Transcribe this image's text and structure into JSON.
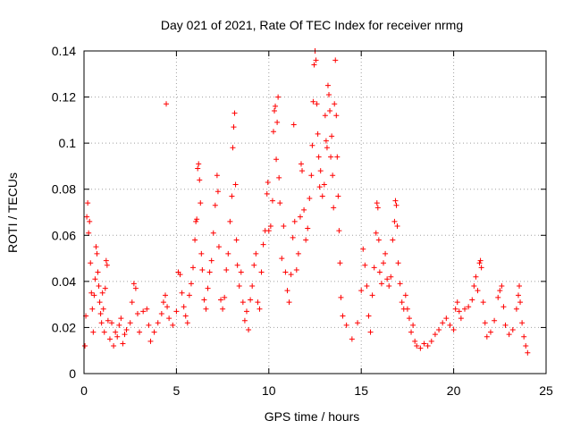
{
  "chart_data": {
    "type": "scatter",
    "title": "Day 021 of 2021, Rate Of TEC Index for receiver nrmg",
    "xlabel": "GPS time / hours",
    "ylabel": "ROTI / TECUs",
    "xlim": [
      0,
      25
    ],
    "ylim": [
      0,
      0.14
    ],
    "xticks": [
      0,
      5,
      10,
      15,
      20,
      25
    ],
    "yticks": [
      0,
      0.02,
      0.04,
      0.06,
      0.08,
      0.1,
      0.12,
      0.14
    ],
    "xtick_labels": [
      "0",
      "5",
      "10",
      "15",
      "20",
      "25"
    ],
    "ytick_labels": [
      "0",
      "0.02",
      "0.04",
      "0.06",
      "0.08",
      "0.1",
      "0.12",
      "0.14"
    ],
    "grid": true,
    "marker": "plus",
    "colors": {
      "series": "#ff0000",
      "grid": "#a0a0a0",
      "axes": "#000000"
    },
    "series": [
      {
        "points": [
          [
            0.05,
            0.012
          ],
          [
            0.1,
            0.025
          ],
          [
            0.15,
            0.068
          ],
          [
            0.2,
            0.074
          ],
          [
            0.25,
            0.061
          ],
          [
            0.3,
            0.066
          ],
          [
            0.35,
            0.048
          ],
          [
            0.4,
            0.035
          ],
          [
            0.45,
            0.028
          ],
          [
            0.5,
            0.018
          ],
          [
            0.55,
            0.034
          ],
          [
            0.6,
            0.041
          ],
          [
            0.65,
            0.055
          ],
          [
            0.7,
            0.052
          ],
          [
            0.75,
            0.044
          ],
          [
            0.8,
            0.038
          ],
          [
            0.85,
            0.031
          ],
          [
            0.9,
            0.026
          ],
          [
            0.95,
            0.022
          ],
          [
            1.0,
            0.035
          ],
          [
            1.05,
            0.028
          ],
          [
            1.1,
            0.018
          ],
          [
            1.15,
            0.037
          ],
          [
            1.2,
            0.049
          ],
          [
            1.25,
            0.047
          ],
          [
            1.3,
            0.023
          ],
          [
            1.4,
            0.015
          ],
          [
            1.5,
            0.022
          ],
          [
            1.6,
            0.012
          ],
          [
            1.7,
            0.018
          ],
          [
            1.8,
            0.016
          ],
          [
            1.9,
            0.021
          ],
          [
            2.0,
            0.024
          ],
          [
            2.1,
            0.013
          ],
          [
            2.2,
            0.017
          ],
          [
            2.3,
            0.019
          ],
          [
            2.5,
            0.022
          ],
          [
            2.6,
            0.031
          ],
          [
            2.7,
            0.039
          ],
          [
            2.8,
            0.037
          ],
          [
            2.9,
            0.026
          ],
          [
            3.0,
            0.018
          ],
          [
            3.2,
            0.027
          ],
          [
            3.4,
            0.028
          ],
          [
            3.5,
            0.021
          ],
          [
            3.6,
            0.014
          ],
          [
            3.8,
            0.018
          ],
          [
            4.0,
            0.022
          ],
          [
            4.2,
            0.026
          ],
          [
            4.3,
            0.031
          ],
          [
            4.4,
            0.034
          ],
          [
            4.45,
            0.117
          ],
          [
            4.5,
            0.029
          ],
          [
            4.6,
            0.024
          ],
          [
            4.8,
            0.021
          ],
          [
            5.0,
            0.027
          ],
          [
            5.1,
            0.044
          ],
          [
            5.2,
            0.043
          ],
          [
            5.3,
            0.035
          ],
          [
            5.4,
            0.029
          ],
          [
            5.5,
            0.025
          ],
          [
            5.6,
            0.022
          ],
          [
            5.7,
            0.034
          ],
          [
            5.8,
            0.039
          ],
          [
            5.9,
            0.046
          ],
          [
            6.0,
            0.058
          ],
          [
            6.05,
            0.066
          ],
          [
            6.1,
            0.067
          ],
          [
            6.15,
            0.089
          ],
          [
            6.2,
            0.091
          ],
          [
            6.25,
            0.084
          ],
          [
            6.3,
            0.074
          ],
          [
            6.35,
            0.052
          ],
          [
            6.4,
            0.045
          ],
          [
            6.5,
            0.032
          ],
          [
            6.6,
            0.028
          ],
          [
            6.7,
            0.037
          ],
          [
            6.8,
            0.044
          ],
          [
            6.9,
            0.049
          ],
          [
            7.0,
            0.061
          ],
          [
            7.1,
            0.073
          ],
          [
            7.2,
            0.086
          ],
          [
            7.25,
            0.079
          ],
          [
            7.3,
            0.055
          ],
          [
            7.4,
            0.032
          ],
          [
            7.5,
            0.028
          ],
          [
            7.6,
            0.033
          ],
          [
            7.7,
            0.045
          ],
          [
            7.8,
            0.052
          ],
          [
            7.9,
            0.066
          ],
          [
            8.0,
            0.077
          ],
          [
            8.05,
            0.098
          ],
          [
            8.1,
            0.107
          ],
          [
            8.15,
            0.113
          ],
          [
            8.2,
            0.082
          ],
          [
            8.25,
            0.058
          ],
          [
            8.3,
            0.047
          ],
          [
            8.4,
            0.038
          ],
          [
            8.5,
            0.044
          ],
          [
            8.6,
            0.031
          ],
          [
            8.7,
            0.023
          ],
          [
            8.8,
            0.027
          ],
          [
            8.9,
            0.019
          ],
          [
            9.0,
            0.032
          ],
          [
            9.1,
            0.038
          ],
          [
            9.2,
            0.047
          ],
          [
            9.3,
            0.052
          ],
          [
            9.4,
            0.031
          ],
          [
            9.5,
            0.028
          ],
          [
            9.6,
            0.044
          ],
          [
            9.7,
            0.056
          ],
          [
            9.8,
            0.062
          ],
          [
            9.9,
            0.078
          ],
          [
            9.95,
            0.083
          ],
          [
            10.0,
            0.062
          ],
          [
            10.1,
            0.064
          ],
          [
            10.2,
            0.075
          ],
          [
            10.25,
            0.105
          ],
          [
            10.3,
            0.114
          ],
          [
            10.35,
            0.116
          ],
          [
            10.4,
            0.093
          ],
          [
            10.45,
            0.109
          ],
          [
            10.5,
            0.12
          ],
          [
            10.55,
            0.085
          ],
          [
            10.6,
            0.074
          ],
          [
            10.7,
            0.05
          ],
          [
            10.8,
            0.064
          ],
          [
            10.9,
            0.044
          ],
          [
            11.0,
            0.036
          ],
          [
            11.1,
            0.031
          ],
          [
            11.2,
            0.043
          ],
          [
            11.3,
            0.059
          ],
          [
            11.35,
            0.108
          ],
          [
            11.4,
            0.066
          ],
          [
            11.5,
            0.045
          ],
          [
            11.6,
            0.052
          ],
          [
            11.7,
            0.068
          ],
          [
            11.75,
            0.091
          ],
          [
            11.8,
            0.088
          ],
          [
            11.9,
            0.071
          ],
          [
            12.0,
            0.058
          ],
          [
            12.1,
            0.063
          ],
          [
            12.2,
            0.076
          ],
          [
            12.3,
            0.086
          ],
          [
            12.35,
            0.099
          ],
          [
            12.4,
            0.118
          ],
          [
            12.45,
            0.134
          ],
          [
            12.5,
            0.14
          ],
          [
            12.55,
            0.136
          ],
          [
            12.6,
            0.117
          ],
          [
            12.65,
            0.104
          ],
          [
            12.7,
            0.094
          ],
          [
            12.75,
            0.081
          ],
          [
            12.8,
            0.088
          ],
          [
            12.9,
            0.077
          ],
          [
            13.0,
            0.082
          ],
          [
            13.05,
            0.112
          ],
          [
            13.1,
            0.101
          ],
          [
            13.15,
            0.098
          ],
          [
            13.2,
            0.125
          ],
          [
            13.25,
            0.121
          ],
          [
            13.3,
            0.114
          ],
          [
            13.35,
            0.094
          ],
          [
            13.4,
            0.103
          ],
          [
            13.45,
            0.086
          ],
          [
            13.5,
            0.072
          ],
          [
            13.55,
            0.117
          ],
          [
            13.6,
            0.136
          ],
          [
            13.65,
            0.112
          ],
          [
            13.7,
            0.094
          ],
          [
            13.75,
            0.077
          ],
          [
            13.8,
            0.062
          ],
          [
            13.85,
            0.048
          ],
          [
            13.9,
            0.033
          ],
          [
            14.0,
            0.025
          ],
          [
            14.2,
            0.021
          ],
          [
            14.5,
            0.015
          ],
          [
            14.8,
            0.022
          ],
          [
            15.0,
            0.036
          ],
          [
            15.1,
            0.054
          ],
          [
            15.2,
            0.047
          ],
          [
            15.3,
            0.038
          ],
          [
            15.4,
            0.025
          ],
          [
            15.5,
            0.018
          ],
          [
            15.6,
            0.034
          ],
          [
            15.7,
            0.046
          ],
          [
            15.8,
            0.061
          ],
          [
            15.85,
            0.074
          ],
          [
            15.9,
            0.072
          ],
          [
            15.95,
            0.058
          ],
          [
            16.0,
            0.044
          ],
          [
            16.1,
            0.039
          ],
          [
            16.2,
            0.048
          ],
          [
            16.3,
            0.052
          ],
          [
            16.4,
            0.041
          ],
          [
            16.5,
            0.038
          ],
          [
            16.6,
            0.042
          ],
          [
            16.7,
            0.058
          ],
          [
            16.8,
            0.066
          ],
          [
            16.85,
            0.075
          ],
          [
            16.9,
            0.073
          ],
          [
            16.95,
            0.064
          ],
          [
            17.0,
            0.048
          ],
          [
            17.1,
            0.039
          ],
          [
            17.2,
            0.031
          ],
          [
            17.3,
            0.028
          ],
          [
            17.4,
            0.034
          ],
          [
            17.5,
            0.028
          ],
          [
            17.6,
            0.024
          ],
          [
            17.7,
            0.018
          ],
          [
            17.8,
            0.021
          ],
          [
            17.9,
            0.014
          ],
          [
            18.0,
            0.012
          ],
          [
            18.2,
            0.011
          ],
          [
            18.4,
            0.013
          ],
          [
            18.6,
            0.012
          ],
          [
            18.8,
            0.014
          ],
          [
            19.0,
            0.017
          ],
          [
            19.2,
            0.019
          ],
          [
            19.4,
            0.022
          ],
          [
            19.6,
            0.024
          ],
          [
            19.8,
            0.021
          ],
          [
            20.0,
            0.019
          ],
          [
            20.1,
            0.028
          ],
          [
            20.2,
            0.031
          ],
          [
            20.3,
            0.027
          ],
          [
            20.4,
            0.024
          ],
          [
            20.6,
            0.028
          ],
          [
            20.8,
            0.029
          ],
          [
            21.0,
            0.032
          ],
          [
            21.1,
            0.038
          ],
          [
            21.2,
            0.042
          ],
          [
            21.3,
            0.036
          ],
          [
            21.4,
            0.048
          ],
          [
            21.45,
            0.049
          ],
          [
            21.5,
            0.046
          ],
          [
            21.6,
            0.031
          ],
          [
            21.7,
            0.022
          ],
          [
            21.8,
            0.016
          ],
          [
            22.0,
            0.018
          ],
          [
            22.2,
            0.023
          ],
          [
            22.4,
            0.033
          ],
          [
            22.5,
            0.036
          ],
          [
            22.6,
            0.038
          ],
          [
            22.7,
            0.029
          ],
          [
            22.8,
            0.021
          ],
          [
            23.0,
            0.017
          ],
          [
            23.2,
            0.019
          ],
          [
            23.4,
            0.028
          ],
          [
            23.5,
            0.034
          ],
          [
            23.55,
            0.038
          ],
          [
            23.6,
            0.031
          ],
          [
            23.7,
            0.022
          ],
          [
            23.8,
            0.016
          ],
          [
            23.9,
            0.012
          ],
          [
            24.0,
            0.009
          ]
        ]
      }
    ]
  }
}
